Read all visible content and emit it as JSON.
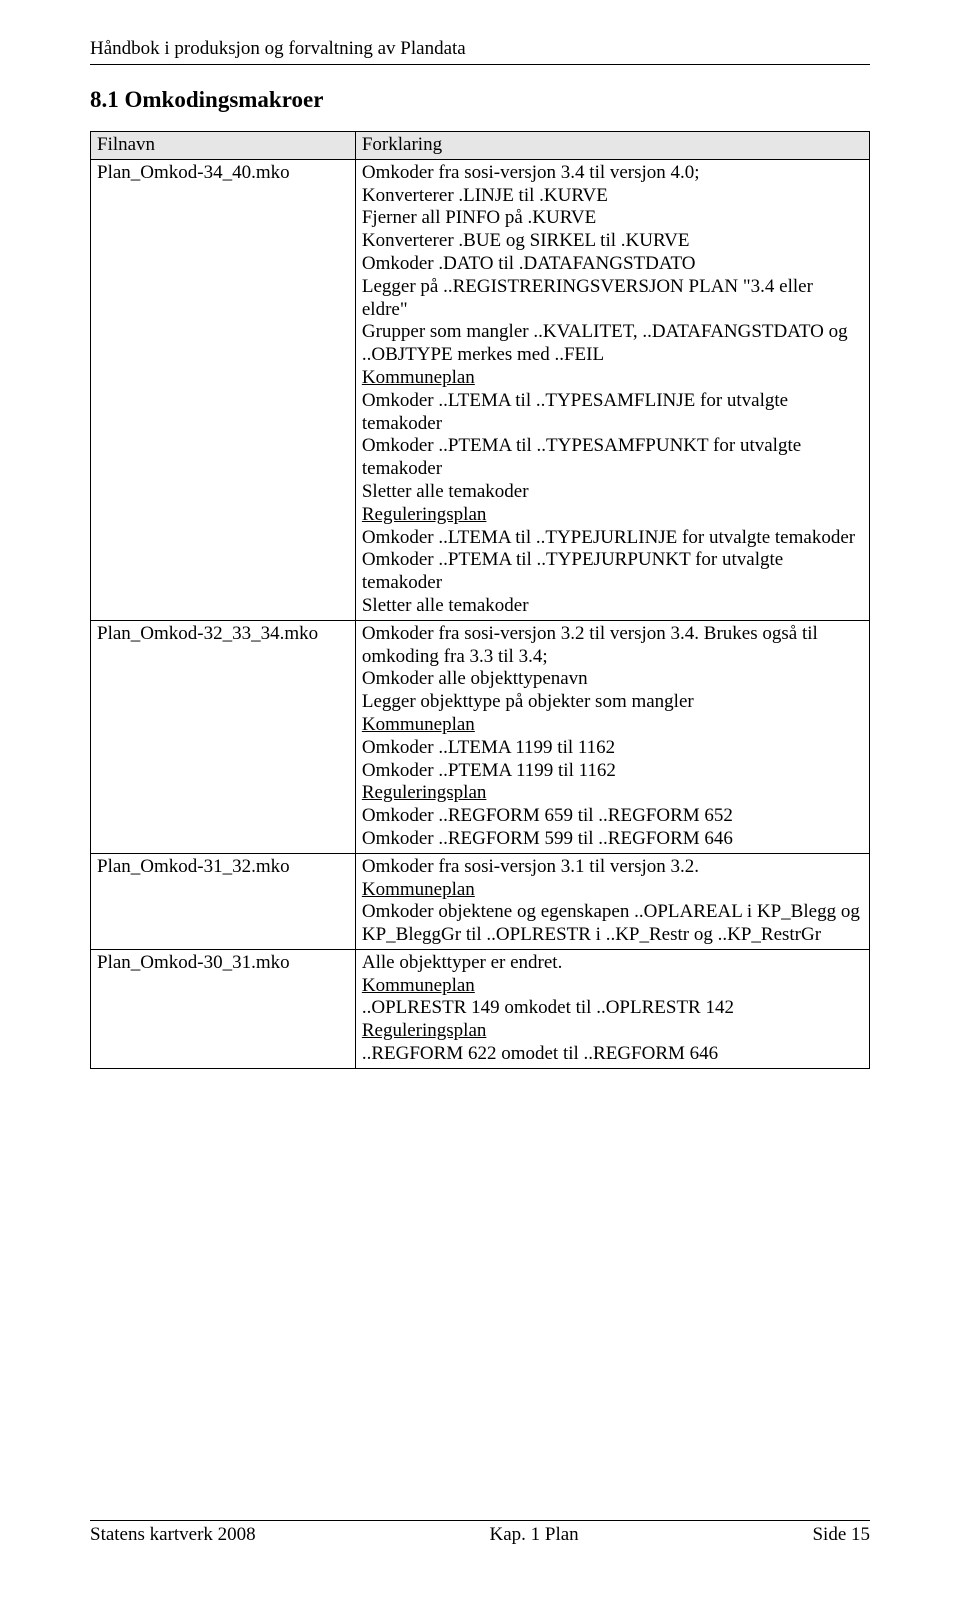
{
  "header": {
    "title": "Håndbok i produksjon og forvaltning av Plandata"
  },
  "section": {
    "heading": "8.1  Omkodingsmakroer"
  },
  "table": {
    "columns": [
      "Filnavn",
      "Forklaring"
    ],
    "rows": [
      {
        "filnavn": "Plan_Omkod-34_40.mko",
        "forklaring": [
          {
            "t": "Omkoder fra sosi-versjon 3.4 til versjon 4.0;"
          },
          {
            "t": "Konverterer .LINJE til .KURVE"
          },
          {
            "t": "Fjerner all PINFO på .KURVE"
          },
          {
            "t": "Konverterer .BUE og SIRKEL til .KURVE"
          },
          {
            "t": "Omkoder .DATO til .DATAFANGSTDATO"
          },
          {
            "t": "Legger på ..REGISTRERINGSVERSJON PLAN \"3.4 eller eldre\""
          },
          {
            "t": "Grupper som mangler ..KVALITET, ..DATAFANGSTDATO og ..OBJTYPE merkes med ..FEIL"
          },
          {
            "t": "Kommuneplan",
            "u": true
          },
          {
            "t": "Omkoder ..LTEMA til ..TYPESAMFLINJE for utvalgte temakoder"
          },
          {
            "t": "Omkoder ..PTEMA til ..TYPESAMFPUNKT for utvalgte temakoder"
          },
          {
            "t": "Sletter alle temakoder"
          },
          {
            "t": "Reguleringsplan",
            "u": true
          },
          {
            "t": "Omkoder ..LTEMA til ..TYPEJURLINJE for utvalgte temakoder"
          },
          {
            "t": "Omkoder ..PTEMA til ..TYPEJURPUNKT for utvalgte temakoder"
          },
          {
            "t": "Sletter alle temakoder"
          }
        ]
      },
      {
        "filnavn": "Plan_Omkod-32_33_34.mko",
        "forklaring": [
          {
            "t": "Omkoder fra sosi-versjon 3.2 til versjon 3.4. Brukes også til omkoding fra 3.3 til 3.4;"
          },
          {
            "t": "Omkoder alle objekttypenavn"
          },
          {
            "t": "Legger objekttype på objekter som mangler"
          },
          {
            "t": "Kommuneplan",
            "u": true
          },
          {
            "t": "Omkoder ..LTEMA 1199 til 1162"
          },
          {
            "t": "Omkoder ..PTEMA 1199 til 1162"
          },
          {
            "t": "Reguleringsplan",
            "u": true
          },
          {
            "t": "Omkoder ..REGFORM 659 til ..REGFORM 652"
          },
          {
            "t": "Omkoder ..REGFORM 599 til ..REGFORM 646"
          }
        ]
      },
      {
        "filnavn": "Plan_Omkod-31_32.mko",
        "forklaring": [
          {
            "t": "Omkoder fra sosi-versjon 3.1 til versjon 3.2."
          },
          {
            "t": "Kommuneplan",
            "u": true
          },
          {
            "t": "Omkoder objektene og egenskapen ..OPLAREAL i KP_Blegg og KP_BleggGr til ..OPLRESTR i ..KP_Restr og ..KP_RestrGr"
          }
        ]
      },
      {
        "filnavn": "Plan_Omkod-30_31.mko",
        "forklaring": [
          {
            "t": "Alle objekttyper er endret."
          },
          {
            "t": "Kommuneplan",
            "u": true
          },
          {
            "t": "..OPLRESTR 149 omkodet til ..OPLRESTR 142"
          },
          {
            "t": "Reguleringsplan",
            "u": true
          },
          {
            "t": "..REGFORM 622 omodet til ..REGFORM 646"
          }
        ]
      }
    ]
  },
  "footer": {
    "left": "Statens kartverk 2008",
    "center": "Kap. 1 Plan",
    "right": "Side 15"
  }
}
